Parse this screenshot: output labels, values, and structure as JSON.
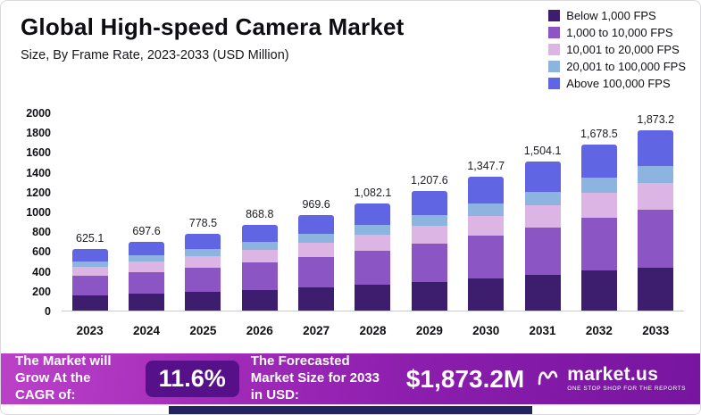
{
  "header": {
    "title": "Global High-speed Camera Market",
    "subtitle": "Size, By Frame Rate, 2023-2033 (USD Million)"
  },
  "chart_data": {
    "type": "bar",
    "stacked": true,
    "title": "Global High-speed Camera Market",
    "subtitle": "Size, By Frame Rate, 2023-2033 (USD Million)",
    "xlabel": "",
    "ylabel": "",
    "ylim": [
      0,
      2000
    ],
    "yticks": [
      0,
      200,
      400,
      600,
      800,
      1000,
      1200,
      1400,
      1600,
      1800,
      2000
    ],
    "grid": false,
    "legend_position": "top-right",
    "categories": [
      "2023",
      "2024",
      "2025",
      "2026",
      "2027",
      "2028",
      "2029",
      "2030",
      "2031",
      "2032",
      "2033"
    ],
    "totals": [
      625.1,
      697.6,
      778.5,
      868.8,
      969.6,
      1082.1,
      1207.6,
      1347.7,
      1504.1,
      1678.5,
      1873.2
    ],
    "total_labels": [
      "625.1",
      "697.6",
      "778.5",
      "868.8",
      "969.6",
      "1,082.1",
      "1,207.6",
      "1,347.7",
      "1,504.1",
      "1,678.5",
      "1,873.2"
    ],
    "series": [
      {
        "name": "Below 1,000 FPS",
        "color": "#3d1d6e",
        "values": [
          150.0,
          167.4,
          186.8,
          208.5,
          232.7,
          259.7,
          289.8,
          323.4,
          361.0,
          402.8,
          449.6
        ]
      },
      {
        "name": "1,000 to 10,000 FPS",
        "color": "#8c55c4",
        "values": [
          200.0,
          223.2,
          249.1,
          278.0,
          310.3,
          346.3,
          386.4,
          431.3,
          481.3,
          537.1,
          599.4
        ]
      },
      {
        "name": "10,001 to 20,000 FPS",
        "color": "#dcb5e5",
        "values": [
          93.8,
          104.6,
          116.8,
          130.3,
          145.4,
          162.3,
          181.1,
          202.2,
          225.6,
          251.8,
          281.0
        ]
      },
      {
        "name": "20,001 to 100,000 FPS",
        "color": "#8db4de",
        "values": [
          56.3,
          62.8,
          70.1,
          78.2,
          87.3,
          97.4,
          108.7,
          121.3,
          135.4,
          151.1,
          168.6
        ]
      },
      {
        "name": "Above 100,000 FPS",
        "color": "#5f65e3",
        "values": [
          125.0,
          139.6,
          155.7,
          173.8,
          193.9,
          216.4,
          241.6,
          269.5,
          300.8,
          335.7,
          374.6
        ]
      }
    ]
  },
  "footer": {
    "cagr_label": "The Market will Grow At the CAGR of:",
    "cagr_value": "11.6%",
    "forecast_label": "The Forecasted Market Size for 2033 in USD:",
    "forecast_value": "$1,873.2M",
    "brand": "market.us",
    "brand_tagline": "ONE STOP SHOP FOR THE REPORTS"
  }
}
